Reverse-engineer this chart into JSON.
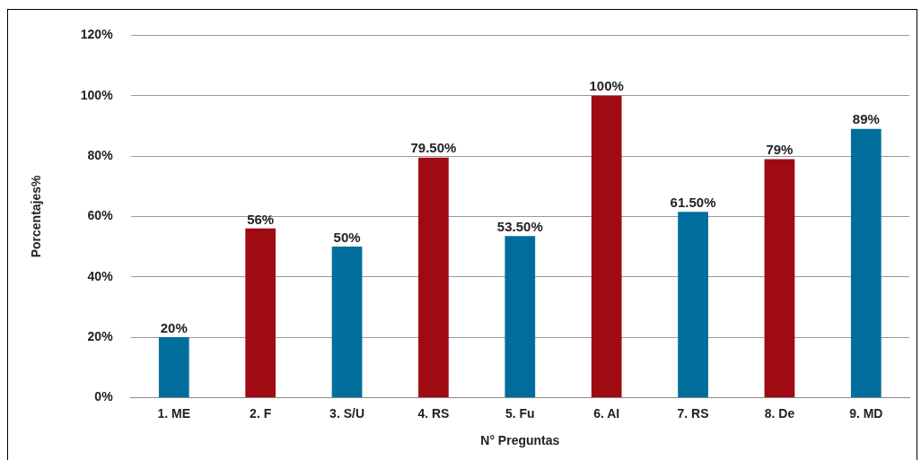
{
  "chart_data": {
    "type": "bar",
    "xlabel": "N° Preguntas",
    "ylabel": "Porcentajes%",
    "categories": [
      "1. ME",
      "2. F",
      "3. S/U",
      "4. RS",
      "5. Fu",
      "6. AI",
      "7. RS",
      "8. De",
      "9. MD"
    ],
    "values": [
      20,
      56,
      50,
      79.5,
      53.5,
      100,
      61.5,
      79,
      89
    ],
    "colors": [
      "#006e9c",
      "#a00b13",
      "#006e9c",
      "#a00b13",
      "#006e9c",
      "#a00b13",
      "#006e9c",
      "#a00b13",
      "#006e9c"
    ],
    "value_labels": [
      "20%",
      "56%",
      "50%",
      "79.50%",
      "53.50%",
      "100%",
      "61.50%",
      "79%",
      "89%"
    ],
    "ylim": [
      0,
      120
    ],
    "yticks": [
      {
        "value": 0,
        "label": "0%"
      },
      {
        "value": 20,
        "label": "20%"
      },
      {
        "value": 40,
        "label": "40%"
      },
      {
        "value": 60,
        "label": "60%"
      },
      {
        "value": 80,
        "label": "80%"
      },
      {
        "value": 100,
        "label": "100%"
      },
      {
        "value": 120,
        "label": "120%"
      }
    ],
    "grid": "y",
    "legend": false
  }
}
